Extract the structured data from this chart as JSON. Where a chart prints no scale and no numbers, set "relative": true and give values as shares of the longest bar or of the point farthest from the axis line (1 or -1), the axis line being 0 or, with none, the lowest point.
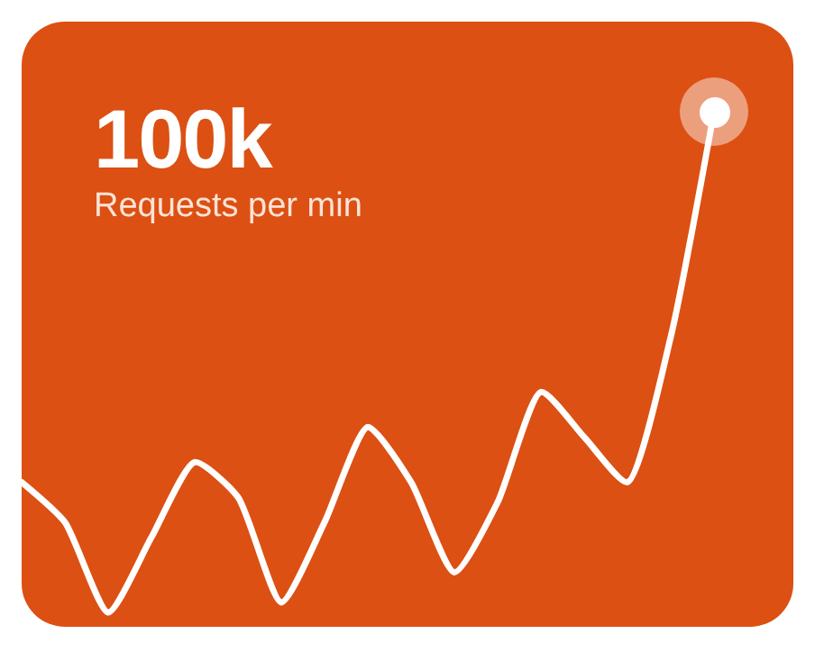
{
  "chart_data": {
    "type": "line",
    "title": "100k",
    "subtitle": "Requests per min",
    "relative": true,
    "categories": [
      null,
      null,
      null,
      null,
      null,
      null,
      null,
      null,
      null,
      null,
      null,
      null,
      null,
      null,
      null,
      null,
      null
    ],
    "series": [
      {
        "color": "#ffffff",
        "values": [
          0.26,
          0.18,
          0,
          0.15,
          0.3,
          0.23,
          0.02,
          0.18,
          0.37,
          0.26,
          0.08,
          0.22,
          0.44,
          0.35,
          0.26,
          0.55,
          1
        ]
      }
    ]
  }
}
